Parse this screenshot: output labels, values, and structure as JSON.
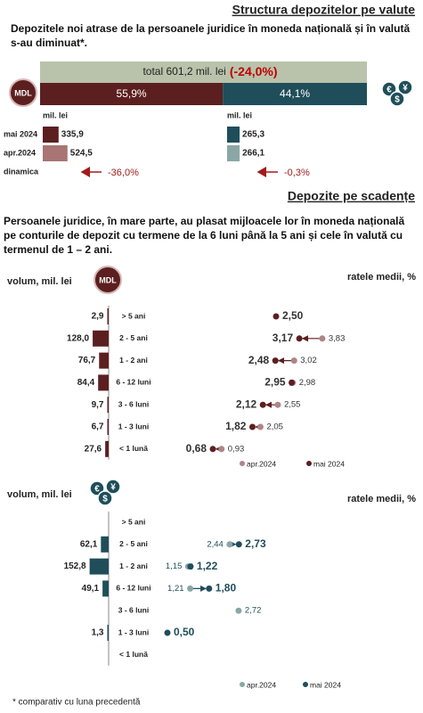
{
  "currency_structure": {
    "title": "Structura depozitelor pe valute",
    "text": "Depozitele noi atrase de la persoanele juridice în moneda națională și în valută s-au diminuat*.",
    "total_label": "total 601,2 mil. lei",
    "total_change": "(-24,0%)",
    "shares": {
      "values": [
        55.9,
        44.1
      ],
      "value_labels": [
        "55,9%",
        "44,1%"
      ],
      "colors": [
        "#5c1f1f",
        "#1f4e5a"
      ]
    },
    "row_labels": [
      "mai 2024",
      "apr.2024",
      "dinamica"
    ],
    "mdl_badge": "MDL",
    "fx_icon": [
      "€",
      "$",
      "¥"
    ],
    "currencies": [
      {
        "unit": "mil. lei",
        "values": [
          335.9,
          524.5
        ],
        "value_labels": [
          "335,9",
          "524,5"
        ],
        "colors": [
          "#5c1f1f",
          "#a87474"
        ],
        "change": "-36,0%"
      },
      {
        "unit": "mil. lei",
        "values": [
          265.3,
          266.1
        ],
        "value_labels": [
          "265,3",
          "266,1"
        ],
        "colors": [
          "#1f4e5a",
          "#8aa6a6"
        ],
        "change": "-0,3%"
      }
    ]
  },
  "maturity": {
    "title": "Depozite pe scadențe",
    "text": "Persoanele juridice, în mare parte, au plasat mijloacele lor în moneda națională pe conturile de depozit cu termene de la 6 luni până la 5 ani și cele în valută cu termenul de 1 – 2 ani.",
    "categories": [
      "> 5 ani",
      "2 - 5 ani",
      "1 - 2 ani",
      "6 - 12 luni",
      "3 - 6 luni",
      "1 - 3 luni",
      "< 1 lună"
    ],
    "charts": [
      {
        "volume_label": "volum, mil. lei",
        "rate_label": "ratele medii, %",
        "volume_color": "#5c1f1f",
        "volumes": [
          2.9,
          128.0,
          76.7,
          84.4,
          9.7,
          6.7,
          27.6
        ],
        "volume_labels": [
          "2,9",
          "128,0",
          "76,7",
          "84,4",
          "9,7",
          "6,7",
          "27,6"
        ],
        "series": [
          {
            "name": "apr.2024",
            "color": "#b08585",
            "values": [
              null,
              3.83,
              3.02,
              2.98,
              2.55,
              2.05,
              0.93
            ],
            "value_labels": [
              null,
              "3,83",
              "3,02",
              "2,98",
              "2,55",
              "2,05",
              "0,93"
            ]
          },
          {
            "name": "mai 2024",
            "color": "#5c1f1f",
            "values": [
              2.5,
              3.17,
              2.48,
              2.95,
              2.12,
              1.82,
              0.68
            ],
            "value_labels": [
              "2,50",
              "3,17",
              "2,48",
              "2,95",
              "2,12",
              "1,82",
              "0,68"
            ]
          }
        ]
      },
      {
        "volume_label": "volum, mil. lei",
        "rate_label": "ratele medii, %",
        "volume_color": "#1f4e5a",
        "volumes": [
          null,
          62.1,
          152.8,
          49.1,
          null,
          1.3,
          null
        ],
        "volume_labels": [
          null,
          "62,1",
          "152,8",
          "49,1",
          null,
          "1,3",
          null
        ],
        "series": [
          {
            "name": "apr.2024",
            "color": "#8aa6a6",
            "values": [
              null,
              2.44,
              1.15,
              1.21,
              2.72,
              null,
              null
            ],
            "value_labels": [
              null,
              "2,44",
              "1,15",
              "1,21",
              "2,72",
              null,
              null
            ]
          },
          {
            "name": "mai 2024",
            "color": "#1f4e5a",
            "values": [
              null,
              2.73,
              1.22,
              1.8,
              null,
              0.5,
              null
            ],
            "value_labels": [
              null,
              "2,73",
              "1,22",
              "1,80",
              null,
              "0,50",
              null
            ]
          }
        ]
      }
    ]
  },
  "footnote": "* comparativ cu luna precedentă"
}
